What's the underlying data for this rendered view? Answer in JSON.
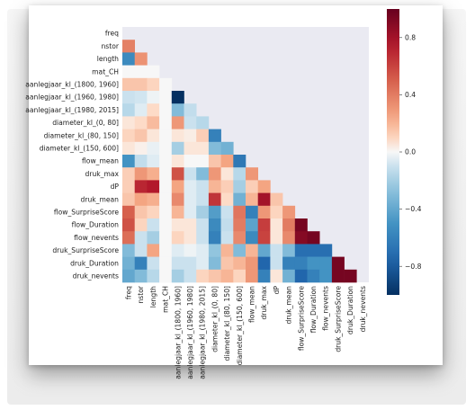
{
  "chart_data": {
    "type": "heatmap",
    "title": "",
    "variables": [
      "freq",
      "nstor",
      "length",
      "mat_CH",
      "aanlegjaar_kl_(1800, 1960]",
      "aanlegjaar_kl_(1960, 1980]",
      "aanlegjaar_kl_(1980, 2015]",
      "diameter_kl_(0, 80]",
      "diameter_kl_(80, 150]",
      "diameter_kl_(150, 600]",
      "flow_mean",
      "druk_max",
      "dP",
      "druk_mean",
      "flow_SurpriseScore",
      "flow_Duration",
      "flow_nevents",
      "druk_SurpriseScore",
      "druk_Duration",
      "druk_nevents"
    ],
    "mask": "upper-triangle",
    "matrix": [
      [],
      [
        0.38
      ],
      [
        -0.55,
        0.32
      ],
      [
        0,
        0,
        0
      ],
      [
        0.15,
        0.15,
        0.1,
        0
      ],
      [
        -0.1,
        -0.08,
        -0.02,
        0,
        -1.0
      ],
      [
        -0.15,
        -0.05,
        0.08,
        0,
        -0.3,
        -0.12
      ],
      [
        0.05,
        0.08,
        0.18,
        0,
        0.3,
        -0.1,
        -0.15
      ],
      [
        0.1,
        0.15,
        0.05,
        0,
        0.05,
        0.03,
        0.12,
        -0.6
      ],
      [
        0.05,
        0.02,
        -0.03,
        0,
        -0.2,
        0.05,
        0.05,
        -0.3,
        -0.35
      ],
      [
        -0.5,
        -0.12,
        -0.05,
        0,
        0.05,
        0,
        0,
        0.15,
        0.25,
        -0.65
      ],
      [
        0.12,
        0.3,
        0.22,
        0,
        0.55,
        -0.1,
        -0.3,
        0.3,
        0.05,
        -0.15,
        0.3
      ],
      [
        0.12,
        0.7,
        0.75,
        0,
        0.25,
        -0.05,
        -0.1,
        0.2,
        0.12,
        -0.2,
        0.12,
        0.25
      ],
      [
        0.15,
        0.25,
        0.22,
        0,
        0.35,
        -0.05,
        -0.1,
        0.65,
        0.08,
        -0.35,
        0.2,
        0.8,
        0.15
      ],
      [
        0.5,
        0.15,
        0.1,
        0,
        0.2,
        -0.05,
        -0.2,
        -0.45,
        -0.1,
        0.42,
        -0.6,
        0.3,
        0.1,
        0.3
      ],
      [
        0.55,
        0.1,
        -0.1,
        0,
        0.05,
        0.05,
        -0.1,
        -0.55,
        -0.12,
        0.4,
        -0.42,
        0.62,
        0.05,
        0.4,
        0.95
      ],
      [
        0.45,
        -0.1,
        -0.2,
        0,
        0.1,
        0.05,
        -0.1,
        -0.6,
        -0.1,
        0.35,
        -0.55,
        0.6,
        0.05,
        0.35,
        0.9,
        0.95
      ],
      [
        -0.3,
        -0.1,
        0.25,
        0,
        -0.05,
        -0.02,
        -0.05,
        -0.25,
        0.2,
        -0.3,
        0.2,
        -0.4,
        -0.1,
        -0.3,
        -0.7,
        -0.7,
        -0.7
      ],
      [
        -0.35,
        -0.6,
        -0.1,
        0,
        -0.1,
        -0.1,
        -0.05,
        -0.3,
        0.15,
        0.2,
        0.3,
        -0.75,
        -0.1,
        -0.6,
        -0.6,
        -0.5,
        -0.5,
        0.95
      ],
      [
        -0.4,
        -0.3,
        -0.15,
        0,
        -0.2,
        -0.1,
        0.1,
        0.15,
        0.2,
        0.1,
        0.3,
        -0.6,
        0.05,
        -0.35,
        -0.75,
        -0.6,
        -0.5,
        0.95,
        0.95
      ]
    ],
    "colorbar": {
      "range": [
        -1,
        1
      ],
      "ticks": [
        0.8,
        0.4,
        0.0,
        -0.4,
        -0.8
      ],
      "tick_labels": [
        "0.8",
        "0.4",
        "0.0",
        "−0.4",
        "−0.8"
      ],
      "colormap": "RdBu_r"
    },
    "background_color": "#eaeaf2"
  }
}
